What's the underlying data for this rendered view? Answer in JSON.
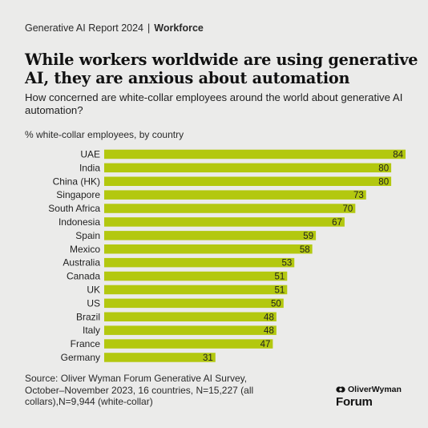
{
  "header": {
    "report": "Generative AI Report 2024",
    "separator": "|",
    "section": "Workforce"
  },
  "chart_data": {
    "type": "bar",
    "orientation": "horizontal",
    "title": "While workers worldwide are using generative AI, they are anxious about automation",
    "subtitle": "How concerned are white-collar employees around the world about generative AI automation?",
    "value_label": "% white-collar employees, by country",
    "categories": [
      "UAE",
      "India",
      "China (HK)",
      "Singapore",
      "South Africa",
      "Indonesia",
      "Spain",
      "Mexico",
      "Australia",
      "Canada",
      "UK",
      "US",
      "Brazil",
      "Italy",
      "France",
      "Germany"
    ],
    "values": [
      84,
      80,
      80,
      73,
      70,
      67,
      59,
      58,
      53,
      51,
      51,
      50,
      48,
      48,
      47,
      31
    ],
    "xlim": [
      0,
      84
    ],
    "bar_color": "#b3c80f",
    "data_labels": true,
    "grid": false,
    "legend": "none"
  },
  "source": "Source: Oliver Wyman Forum Generative AI Survey, October–November 2023, 16 countries, N=15,227 (all collars),N=9,944 (white-collar)",
  "logo": {
    "brand": "OliverWyman",
    "sub": "Forum"
  }
}
